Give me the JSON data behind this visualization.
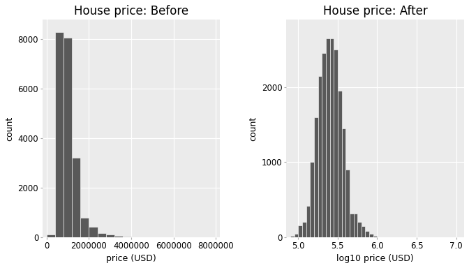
{
  "before": {
    "title": "House price: Before",
    "xlabel": "price (USD)",
    "ylabel": "count",
    "bar_heights": [
      100,
      8300,
      8050,
      3200,
      800,
      420,
      160,
      110,
      50,
      20,
      10,
      5,
      3,
      2,
      1,
      1,
      0,
      0,
      0,
      0
    ],
    "bin_start": 0,
    "bin_width": 400000,
    "xlim": [
      -200000,
      8200000
    ],
    "ylim": [
      0,
      8800
    ],
    "xticks": [
      0,
      2000000,
      4000000,
      6000000,
      8000000
    ],
    "xticklabels": [
      "0",
      "2000000",
      "4000000",
      "6000000",
      "8000000"
    ],
    "yticks": [
      0,
      2000,
      4000,
      6000,
      8000
    ],
    "yticklabels": [
      "0",
      "2000",
      "4000",
      "6000",
      "8000"
    ]
  },
  "after": {
    "title": "House price: After",
    "xlabel": "log10 price (USD)",
    "ylabel": "count",
    "bar_heights": [
      20,
      50,
      160,
      200,
      420,
      1000,
      1600,
      2150,
      2450,
      2650,
      2650,
      2500,
      1950,
      1450,
      900,
      320,
      320,
      200,
      150,
      80,
      50,
      20
    ],
    "bin_start": 4.9,
    "bin_width": 0.05,
    "xlim": [
      4.85,
      7.1
    ],
    "ylim": [
      0,
      2900
    ],
    "xticks": [
      5.0,
      5.5,
      6.0,
      6.5,
      7.0
    ],
    "xticklabels": [
      "5.0",
      "5.5",
      "6.0",
      "6.5",
      "7.0"
    ],
    "yticks": [
      0,
      1000,
      2000
    ],
    "yticklabels": [
      "0",
      "1000",
      "2000"
    ]
  },
  "bar_color": "#595959",
  "bar_edge_color": "white",
  "bg_color": "#EBEBEB",
  "grid_color": "#FFFFFF",
  "title_fontsize": 12,
  "label_fontsize": 9,
  "tick_fontsize": 8.5
}
